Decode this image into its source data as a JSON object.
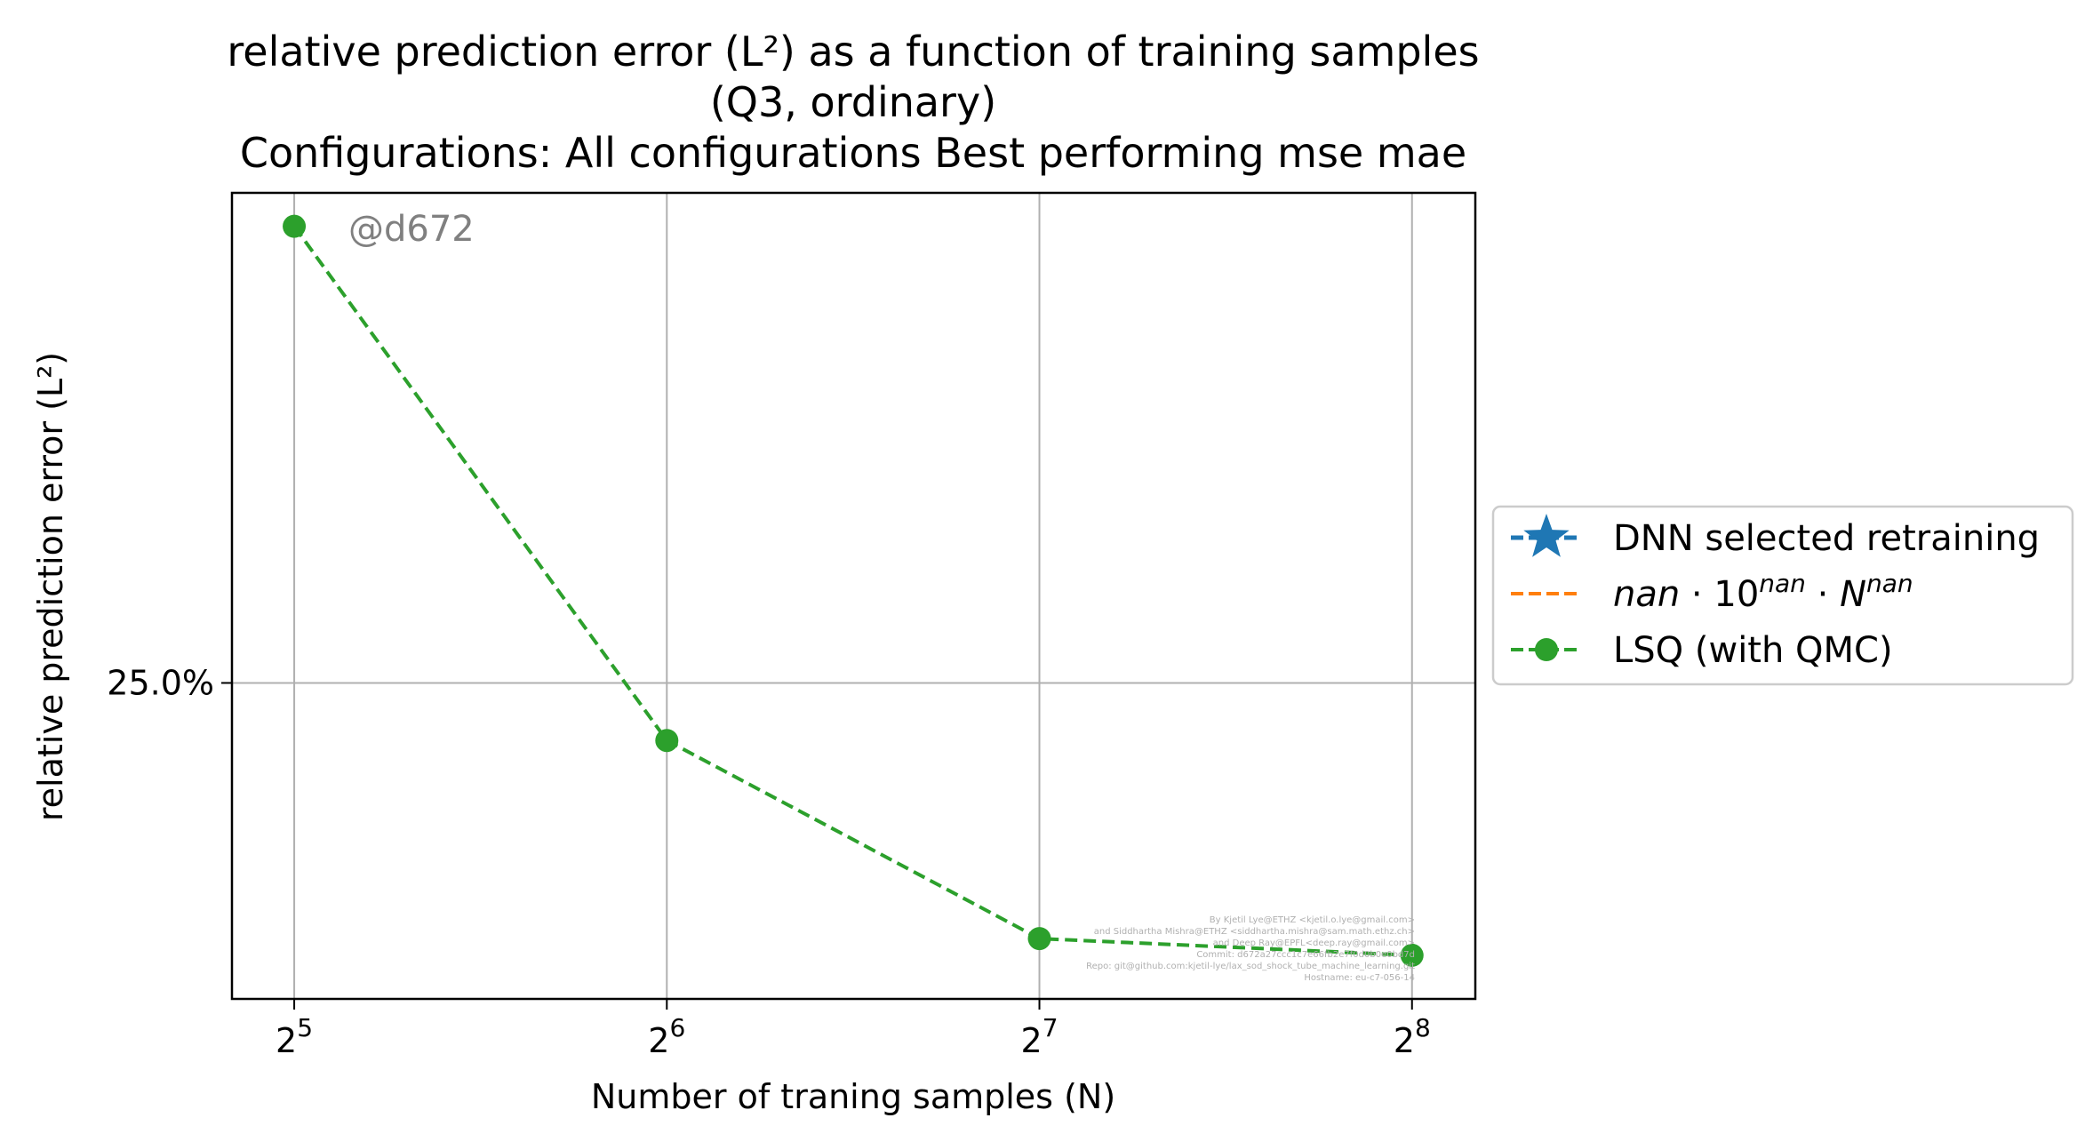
{
  "chart_data": {
    "type": "line",
    "title_lines": [
      "relative prediction error (L²) as a function of training samples",
      "(Q3, ordinary)",
      "Configurations: All configurations Best performing mse mae"
    ],
    "xlabel": "Number of traning samples (N)",
    "ylabel": "relative prediction error (L²)",
    "x_scale": "log2",
    "y_scale": "log",
    "xlim": [
      28.5,
      288
    ],
    "ylim": [
      0.162,
      0.49
    ],
    "x_ticks": [
      {
        "value": 32,
        "base": "2",
        "exp": "5"
      },
      {
        "value": 64,
        "base": "2",
        "exp": "6"
      },
      {
        "value": 128,
        "base": "2",
        "exp": "7"
      },
      {
        "value": 256,
        "base": "2",
        "exp": "8"
      }
    ],
    "y_ticks": [
      {
        "value": 0.25,
        "label": "25.0%"
      }
    ],
    "grid": true,
    "legend_position": "right-outside",
    "series": [
      {
        "name": "DNN selected retraining",
        "color": "#1f77b4",
        "marker": "star",
        "line": "dashed",
        "x": [],
        "y": []
      },
      {
        "name": "nan · 10^nan · N^nan",
        "color": "#ff7f0e",
        "marker": "none",
        "line": "dashed",
        "x": [],
        "y": []
      },
      {
        "name": "LSQ (with QMC)",
        "color": "#2ca02c",
        "marker": "circle",
        "line": "dashed",
        "x": [
          32,
          64,
          128,
          256
        ],
        "y": [
          0.468,
          0.231,
          0.176,
          0.172
        ]
      }
    ],
    "legend": {
      "dnn": "DNN selected retraining",
      "fit": {
        "t1": "nan",
        "t2": " · 10",
        "t3": "nan",
        "t4": " · ",
        "t5": "N",
        "t6": "nan"
      },
      "lsq": "LSQ (with QMC)"
    },
    "watermark": "@d672",
    "credits": [
      "By Kjetil Lye@ETHZ <kjetil.o.lye@gmail.com>",
      "and Siddhartha Mishra@ETHZ <siddhartha.mishra@sam.math.ethz.ch>",
      "and Deep Ray@EPFL<deep.ray@gmail.com>",
      "Commit: d672a27ccc1c7e66fb2e7f0d0b0e0bd7d",
      "Repo: git@github.com:kjetil-lye/lax_sod_shock_tube_machine_learning.git",
      "Hostname: eu-c7-056-14"
    ]
  }
}
